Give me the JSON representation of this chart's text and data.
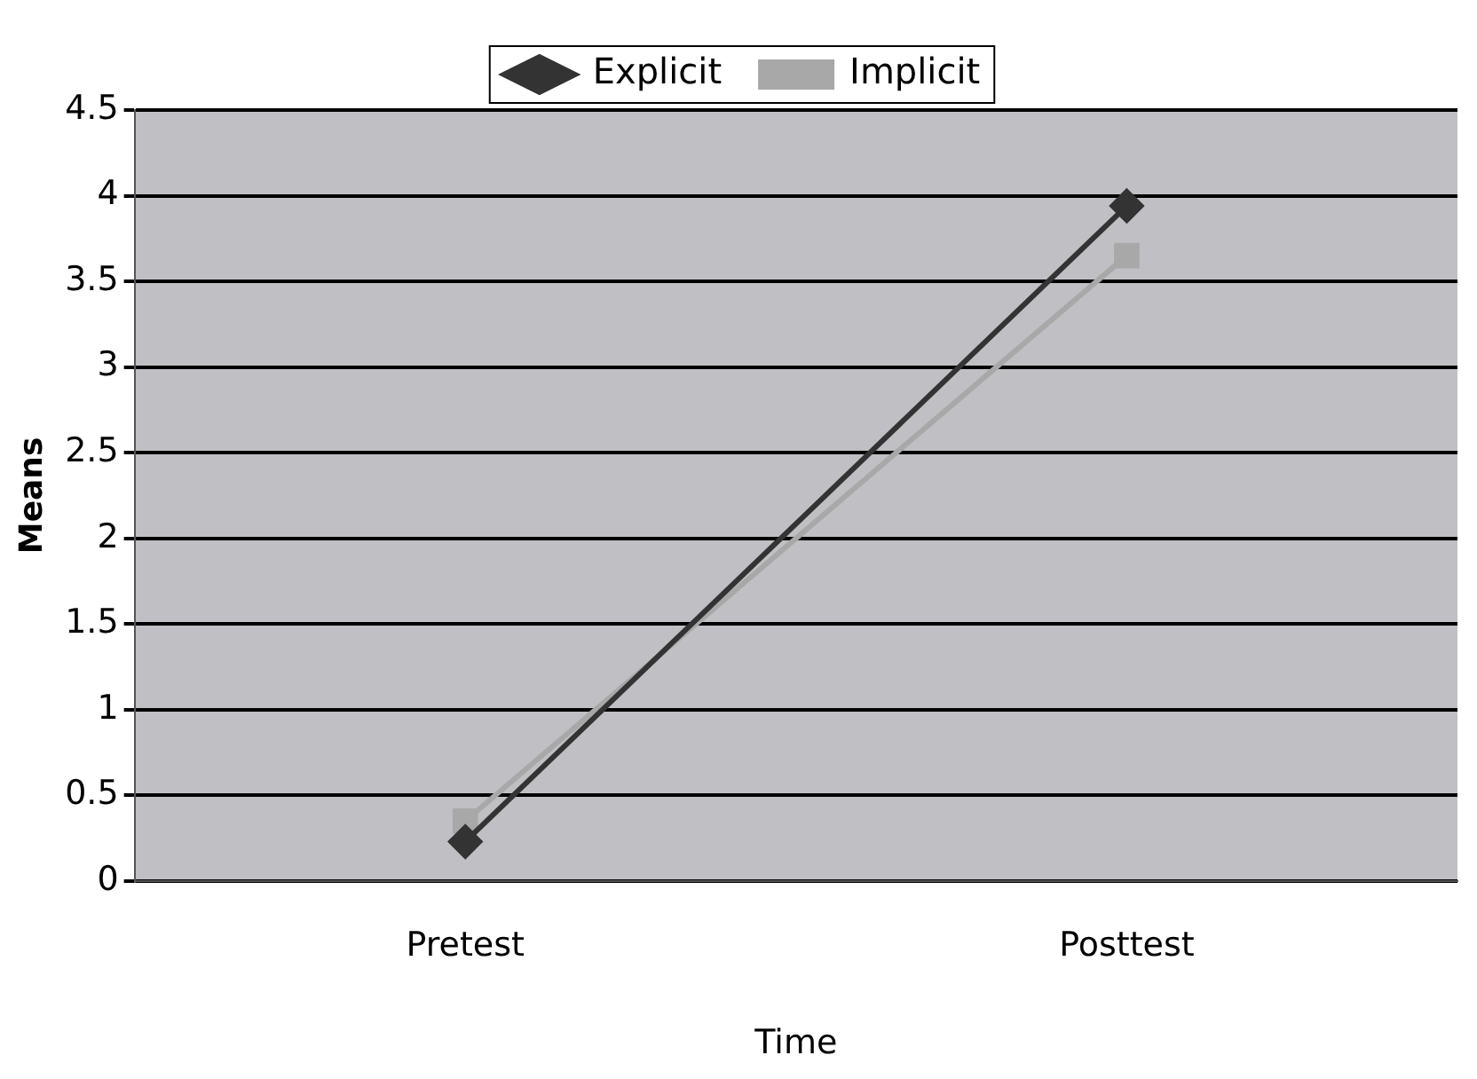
{
  "chart_data": {
    "type": "line",
    "xlabel": "Time",
    "ylabel": "Means",
    "categories": [
      "Pretest",
      "Posttest"
    ],
    "series": [
      {
        "name": "Explicit",
        "color": "#333333",
        "values": [
          0.23,
          3.94
        ],
        "marker": "diamond"
      },
      {
        "name": "Implicit",
        "color": "#a8a8a8",
        "values": [
          0.35,
          3.65
        ],
        "marker": "square"
      }
    ],
    "ylim": [
      0,
      4.5
    ],
    "yticks": [
      0,
      0.5,
      1,
      1.5,
      2,
      2.5,
      3,
      3.5,
      4,
      4.5
    ],
    "grid": "y",
    "legend": "top",
    "line_style": "solid"
  }
}
